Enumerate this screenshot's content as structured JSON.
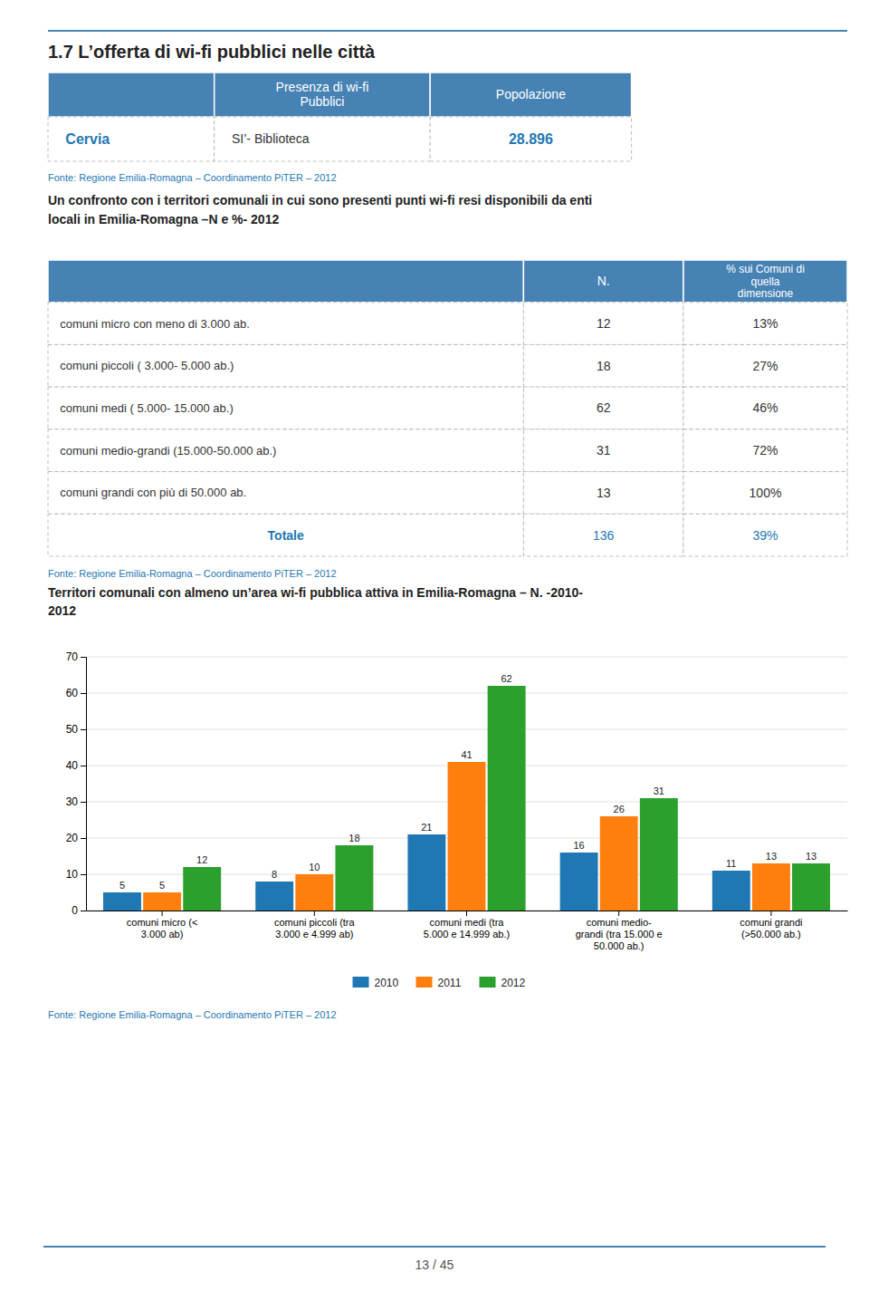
{
  "page_title": "1.7   L’offerta di wi-fi pubblici nelle città",
  "table1": {
    "header": [
      null,
      "Presenza di wi-fi\nPubblici",
      "Popolazione"
    ],
    "rows": [
      [
        "Cervia",
        "SI’- Biblioteca",
        "28.896"
      ]
    ]
  },
  "fonte1": "Fonte: Regione Emilia-Romagna – Coordinamento PiTER – 2012",
  "intro_text": "Un confronto con i territori comunali in cui sono presenti punti wi-fi resi disponibili da enti\nlocali in Emilia-Romagna –N e %- 2012",
  "table2": {
    "header": [
      null,
      "N.",
      "% sui Comuni di\nquella\ndimensione"
    ],
    "rows": [
      [
        "comuni micro con meno di 3.000 ab.",
        "12",
        "13%"
      ],
      [
        "comuni piccoli ( 3.000- 5.000 ab.)",
        "18",
        "27%"
      ],
      [
        "comuni medi ( 5.000- 15.000 ab.)",
        "62",
        "46%"
      ],
      [
        "comuni medio-grandi (15.000-50.000 ab.)",
        "31",
        "72%"
      ],
      [
        "comuni grandi con più di 50.000 ab.",
        "13",
        "100%"
      ]
    ],
    "total": [
      "Totale",
      "136",
      "39%"
    ]
  },
  "fonte2": "Fonte: Regione Emilia-Romagna – Coordinamento PiTER – 2012",
  "chart_data": {
    "type": "bar",
    "title": "Territori comunali con almeno un’area  wi-fi pubblica attiva in Emilia-Romagna – N. -2010-\n2012",
    "categories": [
      "comuni micro (<\n3.000 ab)",
      "comuni piccoli (tra\n3.000 e 4.999 ab)",
      "comuni medi (tra\n5.000 e 14.999 ab.)",
      "comuni medio-\ngrandi (tra 15.000 e\n50.000 ab.)",
      "comuni grandi\n(>50.000 ab.)"
    ],
    "series": [
      {
        "name": "2010",
        "values": [
          5,
          8,
          21,
          16,
          11
        ]
      },
      {
        "name": "2011",
        "values": [
          5,
          10,
          41,
          26,
          13
        ]
      },
      {
        "name": "2012",
        "values": [
          12,
          18,
          62,
          31,
          13
        ]
      }
    ],
    "ylim": [
      0,
      70
    ],
    "yticks": [
      0,
      10,
      20,
      30,
      40,
      50,
      60,
      70
    ],
    "grid": true,
    "data_labels": true,
    "legend": "bottom"
  },
  "fonte3": "Fonte: Regione Emilia-Romagna – Coordinamento PiTER – 2012",
  "page_number": "13 / 45"
}
